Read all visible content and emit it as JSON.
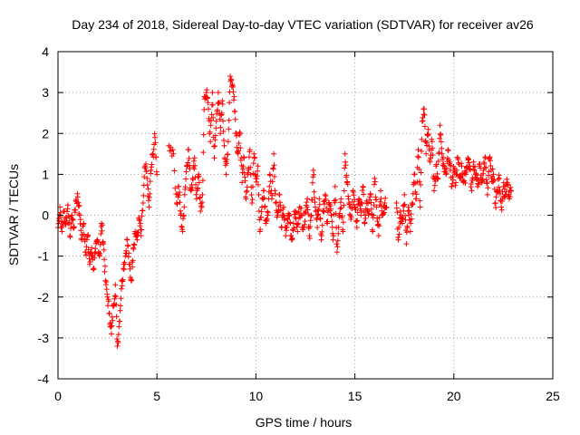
{
  "chart_data": {
    "type": "scatter",
    "title": "Day 234 of 2018, Sidereal Day-to-day VTEC variation (SDTVAR) for receiver av26",
    "xlabel": "GPS time / hours",
    "ylabel": "SDTVAR / TECUs",
    "xlim": [
      0,
      25
    ],
    "ylim": [
      -4,
      4
    ],
    "xticks": [
      0,
      5,
      10,
      15,
      20,
      25
    ],
    "yticks": [
      -4,
      -3,
      -2,
      -1,
      0,
      1,
      2,
      3,
      4
    ],
    "grid": true,
    "marker": "plus",
    "color": "#ff0000",
    "trace": [
      [
        0.0,
        -0.3
      ],
      [
        0.1,
        0.2
      ],
      [
        0.2,
        -0.4
      ],
      [
        0.3,
        0.1
      ],
      [
        0.4,
        -0.2
      ],
      [
        0.5,
        0.25
      ],
      [
        0.6,
        -0.5
      ],
      [
        0.7,
        0.0
      ],
      [
        0.8,
        -0.3
      ],
      [
        0.9,
        0.35
      ],
      [
        1.0,
        0.45
      ],
      [
        1.1,
        0.0
      ],
      [
        1.2,
        -0.6
      ],
      [
        1.3,
        -0.2
      ],
      [
        1.4,
        -0.9
      ],
      [
        1.5,
        -0.5
      ],
      [
        1.6,
        -1.2
      ],
      [
        1.7,
        -0.8
      ],
      [
        1.8,
        -1.3
      ],
      [
        1.9,
        -0.9
      ],
      [
        2.0,
        -0.6
      ],
      [
        2.1,
        -1.0
      ],
      [
        2.2,
        -0.2
      ],
      [
        2.3,
        -0.7
      ],
      [
        2.4,
        -1.6
      ],
      [
        2.5,
        -2.0
      ],
      [
        2.6,
        -2.4
      ],
      [
        2.7,
        -2.9
      ],
      [
        2.8,
        -2.2
      ],
      [
        2.9,
        -1.7
      ],
      [
        3.0,
        -3.2
      ],
      [
        3.1,
        -2.6
      ],
      [
        3.2,
        -1.8
      ],
      [
        3.3,
        -1.3
      ],
      [
        3.4,
        -1.0
      ],
      [
        3.5,
        -0.6
      ],
      [
        3.6,
        -1.2
      ],
      [
        3.7,
        -1.6
      ],
      [
        3.8,
        -0.8
      ],
      [
        3.9,
        -0.4
      ],
      [
        4.0,
        -0.6
      ],
      [
        4.1,
        -0.1
      ],
      [
        4.2,
        -0.5
      ],
      [
        4.3,
        0.3
      ],
      [
        4.4,
        1.2
      ],
      [
        4.5,
        0.9
      ],
      [
        4.6,
        0.2
      ],
      [
        4.7,
        1.1
      ],
      [
        4.8,
        1.5
      ],
      [
        4.9,
        1.9
      ],
      [
        5.0,
        1.0
      ],
      [
        5.2,
        null
      ],
      [
        5.6,
        1.7
      ],
      [
        5.8,
        1.6
      ],
      [
        6.0,
        0.3
      ],
      [
        6.1,
        0.7
      ],
      [
        6.2,
        0.0
      ],
      [
        6.3,
        -0.4
      ],
      [
        6.4,
        0.5
      ],
      [
        6.5,
        1.2
      ],
      [
        6.6,
        1.6
      ],
      [
        6.7,
        0.6
      ],
      [
        6.8,
        0.9
      ],
      [
        6.9,
        1.4
      ],
      [
        7.0,
        0.4
      ],
      [
        7.1,
        1.0
      ],
      [
        7.2,
        0.1
      ],
      [
        7.3,
        0.5
      ],
      [
        7.4,
        2.9
      ],
      [
        7.5,
        3.0
      ],
      [
        7.6,
        2.6
      ],
      [
        7.7,
        1.8
      ],
      [
        7.8,
        3.0
      ],
      [
        7.9,
        1.4
      ],
      [
        8.0,
        2.3
      ],
      [
        8.1,
        3.0
      ],
      [
        8.2,
        2.0
      ],
      [
        8.3,
        2.8
      ],
      [
        8.4,
        1.7
      ],
      [
        8.5,
        1.0
      ],
      [
        8.6,
        1.8
      ],
      [
        8.7,
        3.4
      ],
      [
        8.8,
        3.2
      ],
      [
        8.9,
        2.9
      ],
      [
        9.0,
        2.0
      ],
      [
        9.1,
        1.5
      ],
      [
        9.2,
        2.0
      ],
      [
        9.3,
        0.8
      ],
      [
        9.4,
        1.4
      ],
      [
        9.5,
        0.4
      ],
      [
        9.6,
        1.0
      ],
      [
        9.7,
        1.6
      ],
      [
        9.8,
        0.3
      ],
      [
        9.9,
        1.5
      ],
      [
        10.0,
        0.9
      ],
      [
        10.1,
        1.2
      ],
      [
        10.2,
        -0.4
      ],
      [
        10.3,
        0.2
      ],
      [
        10.4,
        0.6
      ],
      [
        10.5,
        -0.2
      ],
      [
        10.6,
        0.0
      ],
      [
        10.7,
        1.0
      ],
      [
        10.8,
        0.4
      ],
      [
        10.9,
        1.5
      ],
      [
        11.0,
        0.3
      ],
      [
        11.1,
        0.0
      ],
      [
        11.2,
        0.5
      ],
      [
        11.3,
        -0.3
      ],
      [
        11.4,
        0.2
      ],
      [
        11.5,
        -0.5
      ],
      [
        11.6,
        -0.1
      ],
      [
        11.7,
        0.0
      ],
      [
        11.8,
        -0.6
      ],
      [
        11.9,
        -0.2
      ],
      [
        12.0,
        0.1
      ],
      [
        12.1,
        -0.4
      ],
      [
        12.2,
        0.2
      ],
      [
        12.3,
        0.0
      ],
      [
        12.4,
        -0.3
      ],
      [
        12.5,
        0.1
      ],
      [
        12.6,
        0.4
      ],
      [
        12.7,
        -0.5
      ],
      [
        12.8,
        0.0
      ],
      [
        12.9,
        1.1
      ],
      [
        13.0,
        0.2
      ],
      [
        13.1,
        -0.3
      ],
      [
        13.2,
        0.4
      ],
      [
        13.3,
        -0.6
      ],
      [
        13.4,
        0.1
      ],
      [
        13.5,
        0.5
      ],
      [
        13.6,
        -0.2
      ],
      [
        13.7,
        0.3
      ],
      [
        13.8,
        0.0
      ],
      [
        13.9,
        -0.6
      ],
      [
        14.0,
        0.7
      ],
      [
        14.1,
        -0.9
      ],
      [
        14.2,
        0.0
      ],
      [
        14.3,
        0.4
      ],
      [
        14.4,
        -0.4
      ],
      [
        14.5,
        1.5
      ],
      [
        14.6,
        0.8
      ],
      [
        14.7,
        0.3
      ],
      [
        14.8,
        -0.1
      ],
      [
        14.9,
        0.6
      ],
      [
        15.0,
        0.2
      ],
      [
        15.1,
        -0.3
      ],
      [
        15.2,
        0.4
      ],
      [
        15.3,
        0.0
      ],
      [
        15.4,
        0.7
      ],
      [
        15.5,
        -0.2
      ],
      [
        15.6,
        0.3
      ],
      [
        15.7,
        0.1
      ],
      [
        15.8,
        0.5
      ],
      [
        15.9,
        -0.4
      ],
      [
        16.0,
        0.9
      ],
      [
        16.1,
        0.2
      ],
      [
        16.2,
        -0.5
      ],
      [
        16.3,
        0.6
      ],
      [
        16.4,
        0.0
      ],
      [
        16.5,
        0.3
      ],
      [
        16.6,
        0.2
      ],
      [
        16.7,
        null
      ],
      [
        17.1,
        0.3
      ],
      [
        17.2,
        -0.6
      ],
      [
        17.3,
        0.1
      ],
      [
        17.4,
        -0.2
      ],
      [
        17.5,
        0.5
      ],
      [
        17.6,
        -0.7
      ],
      [
        17.7,
        0.2
      ],
      [
        17.8,
        -0.4
      ],
      [
        17.9,
        0.3
      ],
      [
        18.0,
        1.0
      ],
      [
        18.1,
        0.4
      ],
      [
        18.2,
        1.6
      ],
      [
        18.3,
        0.2
      ],
      [
        18.4,
        2.3
      ],
      [
        18.5,
        2.6
      ],
      [
        18.6,
        1.5
      ],
      [
        18.7,
        2.1
      ],
      [
        18.8,
        1.3
      ],
      [
        18.9,
        1.8
      ],
      [
        19.0,
        0.6
      ],
      [
        19.1,
        1.2
      ],
      [
        19.2,
        0.9
      ],
      [
        19.3,
        2.2
      ],
      [
        19.4,
        1.5
      ],
      [
        19.5,
        1.2
      ],
      [
        19.6,
        1.0
      ],
      [
        19.7,
        1.6
      ],
      [
        19.8,
        1.3
      ],
      [
        19.9,
        0.7
      ],
      [
        20.0,
        1.1
      ],
      [
        20.1,
        0.8
      ],
      [
        20.2,
        1.4
      ],
      [
        20.3,
        0.9
      ],
      [
        20.4,
        1.2
      ],
      [
        20.5,
        0.8
      ],
      [
        20.6,
        1.0
      ],
      [
        20.7,
        1.4
      ],
      [
        20.8,
        1.2
      ],
      [
        20.9,
        0.6
      ],
      [
        21.0,
        1.3
      ],
      [
        21.1,
        1.0
      ],
      [
        21.2,
        0.7
      ],
      [
        21.3,
        1.2
      ],
      [
        21.4,
        0.8
      ],
      [
        21.5,
        1.1
      ],
      [
        21.6,
        1.4
      ],
      [
        21.7,
        0.5
      ],
      [
        21.8,
        1.4
      ],
      [
        21.9,
        0.9
      ],
      [
        22.0,
        1.0
      ],
      [
        22.1,
        0.3
      ],
      [
        22.2,
        0.6
      ],
      [
        22.3,
        0.9
      ],
      [
        22.4,
        0.2
      ],
      [
        22.5,
        0.7
      ],
      [
        22.6,
        0.5
      ],
      [
        22.7,
        0.8
      ],
      [
        22.8,
        0.4
      ],
      [
        22.9,
        0.6
      ]
    ]
  }
}
